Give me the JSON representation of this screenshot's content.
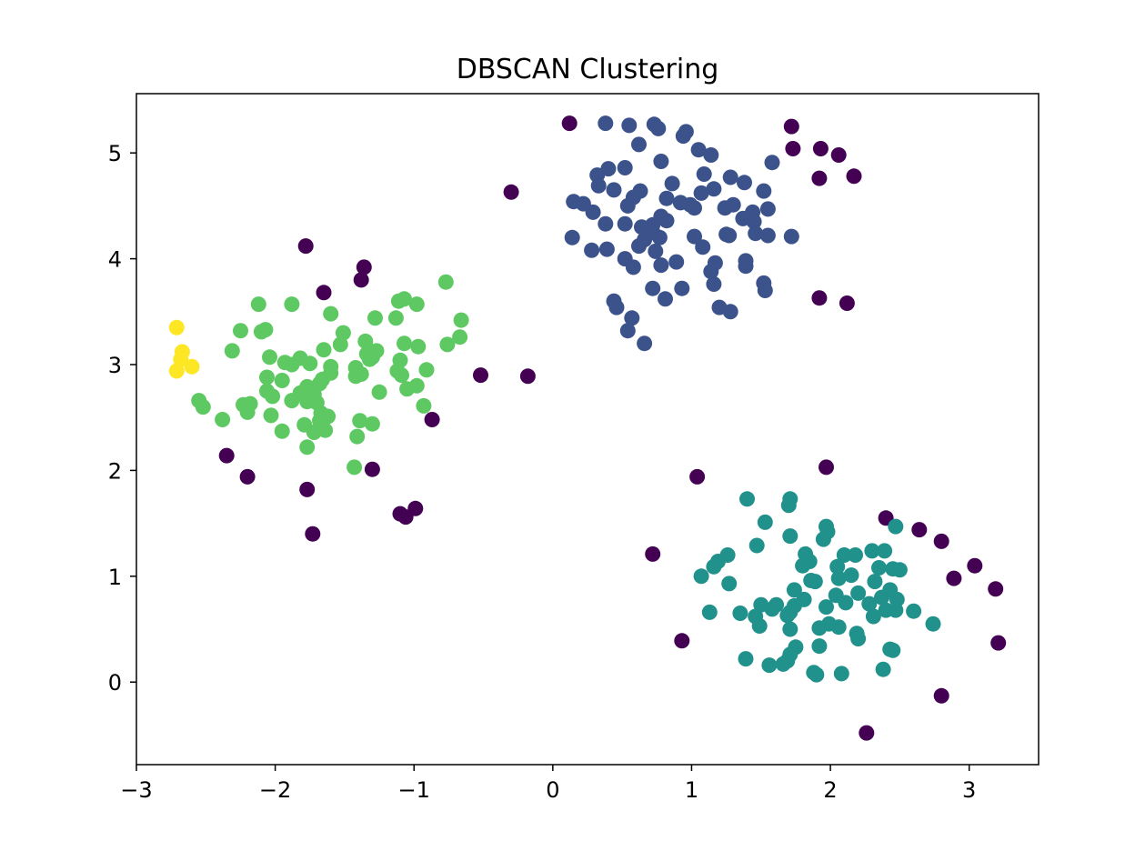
{
  "chart_data": {
    "type": "scatter",
    "title": "DBSCAN Clustering",
    "xlabel": "",
    "ylabel": "",
    "xlim": [
      -3.0,
      3.5
    ],
    "ylim": [
      -0.78,
      5.56
    ],
    "xticks": [
      -3,
      -2,
      -1,
      0,
      1,
      2,
      3
    ],
    "xtick_labels": [
      "−3",
      "−2",
      "−1",
      "0",
      "1",
      "2",
      "3"
    ],
    "yticks": [
      0,
      1,
      2,
      3,
      4,
      5
    ],
    "ytick_labels": [
      "0",
      "1",
      "2",
      "3",
      "4",
      "5"
    ],
    "grid": false,
    "colors": {
      "noise": "#440154",
      "cluster_0": "#3b528b",
      "cluster_1": "#21918c",
      "cluster_2": "#5ec962",
      "cluster_3": "#fde725"
    },
    "series": [
      {
        "color_key": "noise",
        "points": [
          [
            0.12,
            5.28
          ],
          [
            -0.3,
            4.63
          ],
          [
            1.72,
            5.25
          ],
          [
            1.73,
            5.04
          ],
          [
            1.93,
            5.04
          ],
          [
            2.06,
            4.98
          ],
          [
            1.92,
            4.76
          ],
          [
            2.17,
            4.78
          ],
          [
            1.92,
            3.63
          ],
          [
            2.12,
            3.58
          ],
          [
            -1.78,
            4.12
          ],
          [
            -1.36,
            3.92
          ],
          [
            -1.38,
            3.8
          ],
          [
            -1.65,
            3.68
          ],
          [
            -0.52,
            2.9
          ],
          [
            -0.18,
            2.89
          ],
          [
            -0.87,
            2.48
          ],
          [
            -2.35,
            2.14
          ],
          [
            -2.2,
            1.94
          ],
          [
            -1.77,
            1.82
          ],
          [
            -1.3,
            2.01
          ],
          [
            -1.73,
            1.4
          ],
          [
            -1.1,
            1.59
          ],
          [
            -1.06,
            1.56
          ],
          [
            -0.99,
            1.64
          ],
          [
            1.04,
            1.94
          ],
          [
            1.97,
            2.03
          ],
          [
            0.72,
            1.21
          ],
          [
            0.93,
            0.39
          ],
          [
            2.4,
            1.55
          ],
          [
            2.64,
            1.44
          ],
          [
            2.8,
            1.33
          ],
          [
            2.89,
            0.98
          ],
          [
            3.04,
            1.1
          ],
          [
            3.19,
            0.88
          ],
          [
            3.21,
            0.37
          ],
          [
            2.8,
            -0.13
          ],
          [
            2.26,
            -0.48
          ]
        ]
      },
      {
        "color_key": "cluster_0",
        "points": [
          [
            0.38,
            5.28
          ],
          [
            0.55,
            5.26
          ],
          [
            0.73,
            5.27
          ],
          [
            0.76,
            5.23
          ],
          [
            0.96,
            5.2
          ],
          [
            0.94,
            5.16
          ],
          [
            0.62,
            5.08
          ],
          [
            1.05,
            5.03
          ],
          [
            1.14,
            4.98
          ],
          [
            1.58,
            4.91
          ],
          [
            0.78,
            4.92
          ],
          [
            0.4,
            4.85
          ],
          [
            0.52,
            4.86
          ],
          [
            0.32,
            4.79
          ],
          [
            1.09,
            4.8
          ],
          [
            1.28,
            4.77
          ],
          [
            1.38,
            4.72
          ],
          [
            0.86,
            4.71
          ],
          [
            0.33,
            4.69
          ],
          [
            0.44,
            4.65
          ],
          [
            0.63,
            4.64
          ],
          [
            1.16,
            4.66
          ],
          [
            1.07,
            4.62
          ],
          [
            1.52,
            4.64
          ],
          [
            0.82,
            4.57
          ],
          [
            0.58,
            4.58
          ],
          [
            0.15,
            4.54
          ],
          [
            0.22,
            4.52
          ],
          [
            0.54,
            4.5
          ],
          [
            0.92,
            4.53
          ],
          [
            0.99,
            4.51
          ],
          [
            1.24,
            4.48
          ],
          [
            1.3,
            4.51
          ],
          [
            1.55,
            4.47
          ],
          [
            1.02,
            4.48
          ],
          [
            1.44,
            4.44
          ],
          [
            0.29,
            4.44
          ],
          [
            1.37,
            4.38
          ],
          [
            1.45,
            4.35
          ],
          [
            0.82,
            4.36
          ],
          [
            0.72,
            4.32
          ],
          [
            0.52,
            4.33
          ],
          [
            0.38,
            4.33
          ],
          [
            0.64,
            4.3
          ],
          [
            0.78,
            4.4
          ],
          [
            0.72,
            4.25
          ],
          [
            1.02,
            4.21
          ],
          [
            1.25,
            4.23
          ],
          [
            1.27,
            4.22
          ],
          [
            1.46,
            4.24
          ],
          [
            1.55,
            4.22
          ],
          [
            1.72,
            4.21
          ],
          [
            0.14,
            4.2
          ],
          [
            0.77,
            4.2
          ],
          [
            0.66,
            4.18
          ],
          [
            0.62,
            4.12
          ],
          [
            0.28,
            4.08
          ],
          [
            0.39,
            4.09
          ],
          [
            1.08,
            4.11
          ],
          [
            0.74,
            4.07
          ],
          [
            0.52,
            4.0
          ],
          [
            0.89,
            3.97
          ],
          [
            1.17,
            3.96
          ],
          [
            1.39,
            3.98
          ],
          [
            1.39,
            3.93
          ],
          [
            0.58,
            3.92
          ],
          [
            0.78,
            3.94
          ],
          [
            1.14,
            3.88
          ],
          [
            1.16,
            3.76
          ],
          [
            1.52,
            3.77
          ],
          [
            1.53,
            3.7
          ],
          [
            0.72,
            3.72
          ],
          [
            0.93,
            3.72
          ],
          [
            0.81,
            3.62
          ],
          [
            0.44,
            3.6
          ],
          [
            0.46,
            3.54
          ],
          [
            1.2,
            3.54
          ],
          [
            1.28,
            3.5
          ],
          [
            0.57,
            3.44
          ],
          [
            0.54,
            3.32
          ],
          [
            0.66,
            3.2
          ]
        ]
      },
      {
        "color_key": "cluster_1",
        "points": [
          [
            1.4,
            1.73
          ],
          [
            1.71,
            1.73
          ],
          [
            1.7,
            1.67
          ],
          [
            1.53,
            1.51
          ],
          [
            1.97,
            1.47
          ],
          [
            1.98,
            1.42
          ],
          [
            2.47,
            1.47
          ],
          [
            1.71,
            1.38
          ],
          [
            1.95,
            1.35
          ],
          [
            1.47,
            1.29
          ],
          [
            2.3,
            1.24
          ],
          [
            2.39,
            1.24
          ],
          [
            1.82,
            1.21
          ],
          [
            2.1,
            1.2
          ],
          [
            1.26,
            1.2
          ],
          [
            2.18,
            1.2
          ],
          [
            1.85,
            1.14
          ],
          [
            1.19,
            1.14
          ],
          [
            1.16,
            1.09
          ],
          [
            1.8,
            1.1
          ],
          [
            2.05,
            1.09
          ],
          [
            2.35,
            1.08
          ],
          [
            2.45,
            1.07
          ],
          [
            2.5,
            1.06
          ],
          [
            1.07,
            1.0
          ],
          [
            2.06,
            0.98
          ],
          [
            2.15,
            1.01
          ],
          [
            1.27,
            0.93
          ],
          [
            1.86,
            0.96
          ],
          [
            1.89,
            0.95
          ],
          [
            2.32,
            0.95
          ],
          [
            1.74,
            0.87
          ],
          [
            2.2,
            0.84
          ],
          [
            2.43,
            0.87
          ],
          [
            2.37,
            0.8
          ],
          [
            2.48,
            0.78
          ],
          [
            2.04,
            0.82
          ],
          [
            1.97,
            0.71
          ],
          [
            2.11,
            0.75
          ],
          [
            2.28,
            0.74
          ],
          [
            1.5,
            0.73
          ],
          [
            1.61,
            0.73
          ],
          [
            1.58,
            0.69
          ],
          [
            1.81,
            0.78
          ],
          [
            1.74,
            0.72
          ],
          [
            1.71,
            0.66
          ],
          [
            2.4,
            0.68
          ],
          [
            2.47,
            0.68
          ],
          [
            2.6,
            0.67
          ],
          [
            1.35,
            0.65
          ],
          [
            1.13,
            0.66
          ],
          [
            1.46,
            0.62
          ],
          [
            1.69,
            0.63
          ],
          [
            2.31,
            0.62
          ],
          [
            1.49,
            0.53
          ],
          [
            1.71,
            0.5
          ],
          [
            1.99,
            0.55
          ],
          [
            2.06,
            0.52
          ],
          [
            1.92,
            0.51
          ],
          [
            2.19,
            0.46
          ],
          [
            2.2,
            0.41
          ],
          [
            2.74,
            0.55
          ],
          [
            1.75,
            0.33
          ],
          [
            1.71,
            0.26
          ],
          [
            1.92,
            0.34
          ],
          [
            2.43,
            0.31
          ],
          [
            2.45,
            0.3
          ],
          [
            1.39,
            0.22
          ],
          [
            1.69,
            0.2
          ],
          [
            1.66,
            0.17
          ],
          [
            1.56,
            0.16
          ],
          [
            1.88,
            0.09
          ],
          [
            1.9,
            0.07
          ],
          [
            2.08,
            0.08
          ],
          [
            2.38,
            0.12
          ]
        ]
      },
      {
        "color_key": "cluster_2",
        "points": [
          [
            -0.77,
            3.78
          ],
          [
            -2.12,
            3.57
          ],
          [
            -1.88,
            3.57
          ],
          [
            -1.07,
            3.62
          ],
          [
            -1.11,
            3.6
          ],
          [
            -0.98,
            3.57
          ],
          [
            -1.6,
            3.48
          ],
          [
            -1.28,
            3.44
          ],
          [
            -1.13,
            3.44
          ],
          [
            -0.66,
            3.42
          ],
          [
            -2.25,
            3.32
          ],
          [
            -2.1,
            3.31
          ],
          [
            -2.07,
            3.33
          ],
          [
            -1.51,
            3.3
          ],
          [
            -0.67,
            3.26
          ],
          [
            -1.35,
            3.22
          ],
          [
            -1.07,
            3.2
          ],
          [
            -0.97,
            3.17
          ],
          [
            -0.76,
            3.19
          ],
          [
            -1.53,
            3.19
          ],
          [
            -1.65,
            3.14
          ],
          [
            -2.31,
            3.13
          ],
          [
            -1.27,
            3.13
          ],
          [
            -1.34,
            3.1
          ],
          [
            -1.3,
            3.07
          ],
          [
            -2.04,
            3.07
          ],
          [
            -1.82,
            3.06
          ],
          [
            -1.93,
            3.02
          ],
          [
            -1.88,
            3.0
          ],
          [
            -1.75,
            3.01
          ],
          [
            -1.32,
            3.05
          ],
          [
            -1.1,
            3.04
          ],
          [
            -1.6,
            2.98
          ],
          [
            -1.42,
            2.97
          ],
          [
            -0.91,
            2.95
          ],
          [
            -1.12,
            2.94
          ],
          [
            -1.42,
            2.89
          ],
          [
            -1.38,
            2.91
          ],
          [
            -1.09,
            2.9
          ],
          [
            -2.06,
            2.88
          ],
          [
            -1.95,
            2.85
          ],
          [
            -1.66,
            2.86
          ],
          [
            -1.6,
            2.92
          ],
          [
            -1.68,
            2.82
          ],
          [
            -1.77,
            2.79
          ],
          [
            -0.98,
            2.8
          ],
          [
            -1.05,
            2.77
          ],
          [
            -1.25,
            2.74
          ],
          [
            -2.06,
            2.75
          ],
          [
            -1.82,
            2.73
          ],
          [
            -1.72,
            2.72
          ],
          [
            -2.02,
            2.7
          ],
          [
            -1.88,
            2.66
          ],
          [
            -1.77,
            2.65
          ],
          [
            -1.7,
            2.64
          ],
          [
            -2.18,
            2.63
          ],
          [
            -2.23,
            2.62
          ],
          [
            -0.93,
            2.61
          ],
          [
            -2.52,
            2.6
          ],
          [
            -2.55,
            2.66
          ],
          [
            -1.67,
            2.54
          ],
          [
            -2.2,
            2.55
          ],
          [
            -2.03,
            2.52
          ],
          [
            -1.62,
            2.51
          ],
          [
            -1.68,
            2.47
          ],
          [
            -1.39,
            2.47
          ],
          [
            -1.79,
            2.43
          ],
          [
            -1.3,
            2.44
          ],
          [
            -2.38,
            2.48
          ],
          [
            -1.95,
            2.37
          ],
          [
            -1.72,
            2.36
          ],
          [
            -1.64,
            2.38
          ],
          [
            -1.41,
            2.32
          ],
          [
            -1.77,
            2.22
          ],
          [
            -1.43,
            2.03
          ]
        ]
      },
      {
        "color_key": "cluster_3",
        "points": [
          [
            -2.71,
            3.35
          ],
          [
            -2.67,
            3.12
          ],
          [
            -2.68,
            3.05
          ],
          [
            -2.6,
            2.98
          ],
          [
            -2.71,
            2.94
          ]
        ]
      }
    ]
  }
}
